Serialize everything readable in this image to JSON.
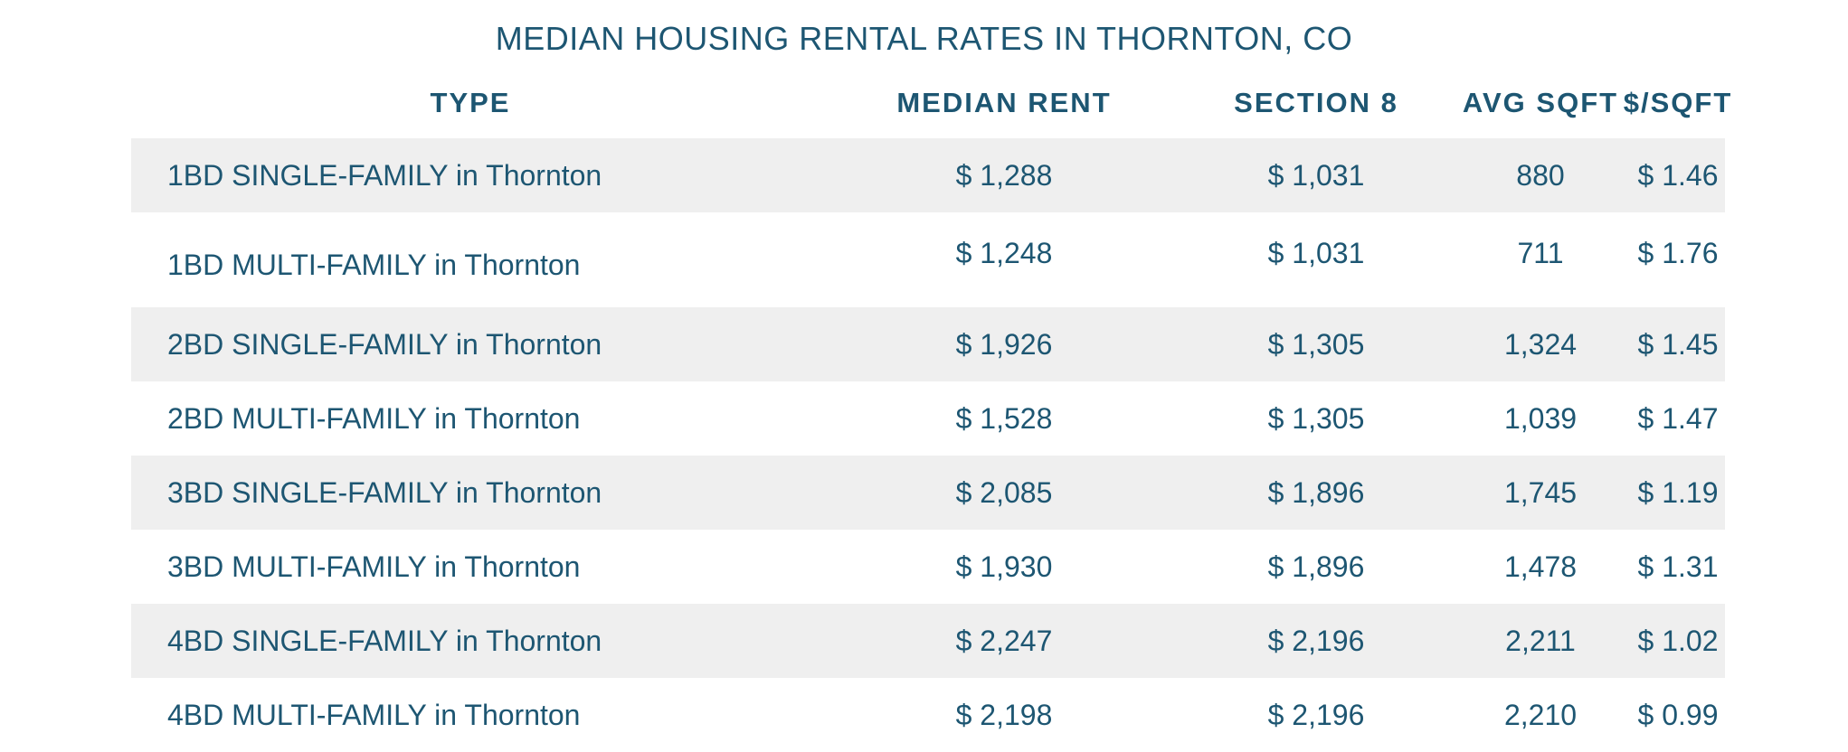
{
  "title": "MEDIAN HOUSING RENTAL RATES IN THORNTON, CO",
  "headers": {
    "type": "TYPE",
    "median_rent": "MEDIAN RENT",
    "section8": "SECTION 8",
    "avg_sqft": "AVG SQFT",
    "per_sqft": "$/SQFT"
  },
  "rows": [
    {
      "type": "1BD SINGLE-FAMILY in Thornton",
      "median_rent": "$ 1,288",
      "section8": "$ 1,031",
      "avg_sqft": "880",
      "per_sqft": "$ 1.46"
    },
    {
      "type": "1BD MULTI-FAMILY in Thornton",
      "median_rent": "$ 1,248",
      "section8": "$ 1,031",
      "avg_sqft": "711",
      "per_sqft": "$ 1.76"
    },
    {
      "type": "2BD SINGLE-FAMILY in Thornton",
      "median_rent": "$ 1,926",
      "section8": "$ 1,305",
      "avg_sqft": "1,324",
      "per_sqft": "$ 1.45"
    },
    {
      "type": "2BD MULTI-FAMILY in Thornton",
      "median_rent": "$ 1,528",
      "section8": "$ 1,305",
      "avg_sqft": "1,039",
      "per_sqft": "$ 1.47"
    },
    {
      "type": "3BD SINGLE-FAMILY in Thornton",
      "median_rent": "$ 2,085",
      "section8": "$ 1,896",
      "avg_sqft": "1,745",
      "per_sqft": "$ 1.19"
    },
    {
      "type": "3BD MULTI-FAMILY in Thornton",
      "median_rent": "$ 1,930",
      "section8": "$ 1,896",
      "avg_sqft": "1,478",
      "per_sqft": "$ 1.31"
    },
    {
      "type": "4BD SINGLE-FAMILY in Thornton",
      "median_rent": "$ 2,247",
      "section8": "$ 2,196",
      "avg_sqft": "2,211",
      "per_sqft": "$ 1.02"
    },
    {
      "type": "4BD MULTI-FAMILY in Thornton",
      "median_rent": "$ 2,198",
      "section8": "$ 2,196",
      "avg_sqft": "2,210",
      "per_sqft": "$ 0.99"
    }
  ]
}
